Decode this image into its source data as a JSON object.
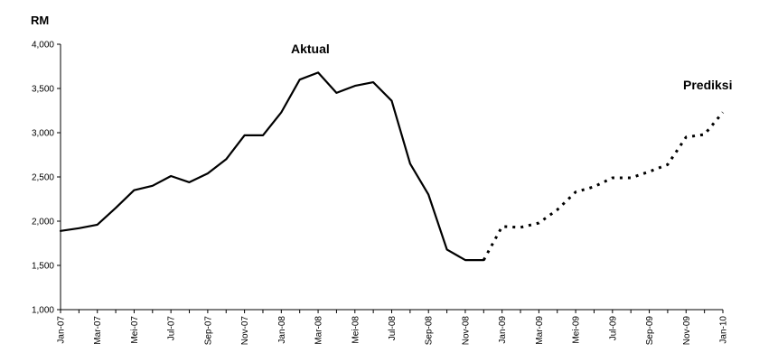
{
  "chart_data": {
    "type": "line",
    "ylabel": "RM",
    "ylim": [
      1000,
      4000
    ],
    "yticks": [
      1000,
      1500,
      2000,
      2500,
      3000,
      3500,
      4000
    ],
    "ytick_labels": [
      "1,000",
      "1,500",
      "2,000",
      "2,500",
      "3,000",
      "3,500",
      "4,000"
    ],
    "grid": false,
    "x_tick_labels": [
      "Jan-07",
      "Mar-07",
      "Mei-07",
      "Jul-07",
      "Sep-07",
      "Nov-07",
      "Jan-08",
      "Mar-08",
      "Mei-08",
      "Jul-08",
      "Sep-08",
      "Nov-08",
      "Jan-09",
      "Mar-09",
      "Mei-09",
      "Jul-09",
      "Sep-09",
      "Nov-09",
      "Jan-10"
    ],
    "x": [
      "Jan-07",
      "Feb-07",
      "Mar-07",
      "Apr-07",
      "Mei-07",
      "Jun-07",
      "Jul-07",
      "Agu-07",
      "Sep-07",
      "Okt-07",
      "Nov-07",
      "Des-07",
      "Jan-08",
      "Feb-08",
      "Mar-08",
      "Apr-08",
      "Mei-08",
      "Jun-08",
      "Jul-08",
      "Agu-08",
      "Sep-08",
      "Okt-08",
      "Nov-08",
      "Des-08",
      "Jan-09",
      "Feb-09",
      "Mar-09",
      "Apr-09",
      "Mei-09",
      "Jun-09",
      "Jul-09",
      "Agu-09",
      "Sep-09",
      "Okt-09",
      "Nov-09",
      "Des-09",
      "Jan-10"
    ],
    "series": [
      {
        "name": "Aktual",
        "style": "solid",
        "color": "#000000",
        "x": [
          "Jan-07",
          "Feb-07",
          "Mar-07",
          "Apr-07",
          "Mei-07",
          "Jun-07",
          "Jul-07",
          "Agu-07",
          "Sep-07",
          "Okt-07",
          "Nov-07",
          "Des-07",
          "Jan-08",
          "Feb-08",
          "Mar-08",
          "Apr-08",
          "Mei-08",
          "Jun-08",
          "Jul-08",
          "Agu-08",
          "Sep-08",
          "Okt-08",
          "Nov-08",
          "Des-08"
        ],
        "values": [
          1890,
          1920,
          1960,
          2150,
          2350,
          2400,
          2510,
          2440,
          2540,
          2700,
          2970,
          2970,
          3230,
          3600,
          3680,
          3450,
          3530,
          3570,
          3360,
          2650,
          2300,
          1680,
          1560,
          1560
        ]
      },
      {
        "name": "Prediksi",
        "style": "dotted",
        "color": "#000000",
        "x": [
          "Des-08",
          "Jan-09",
          "Feb-09",
          "Mar-09",
          "Apr-09",
          "Mei-09",
          "Jun-09",
          "Jul-09",
          "Agu-09",
          "Sep-09",
          "Okt-09",
          "Nov-09",
          "Des-09",
          "Jan-10"
        ],
        "values": [
          1560,
          1940,
          1930,
          1980,
          2130,
          2330,
          2390,
          2490,
          2490,
          2560,
          2640,
          2950,
          2980,
          3230
        ]
      }
    ],
    "annotations": [
      {
        "text": "Aktual",
        "near": "Mar-08"
      },
      {
        "text": "Prediksi",
        "near": "Jan-10"
      }
    ]
  }
}
